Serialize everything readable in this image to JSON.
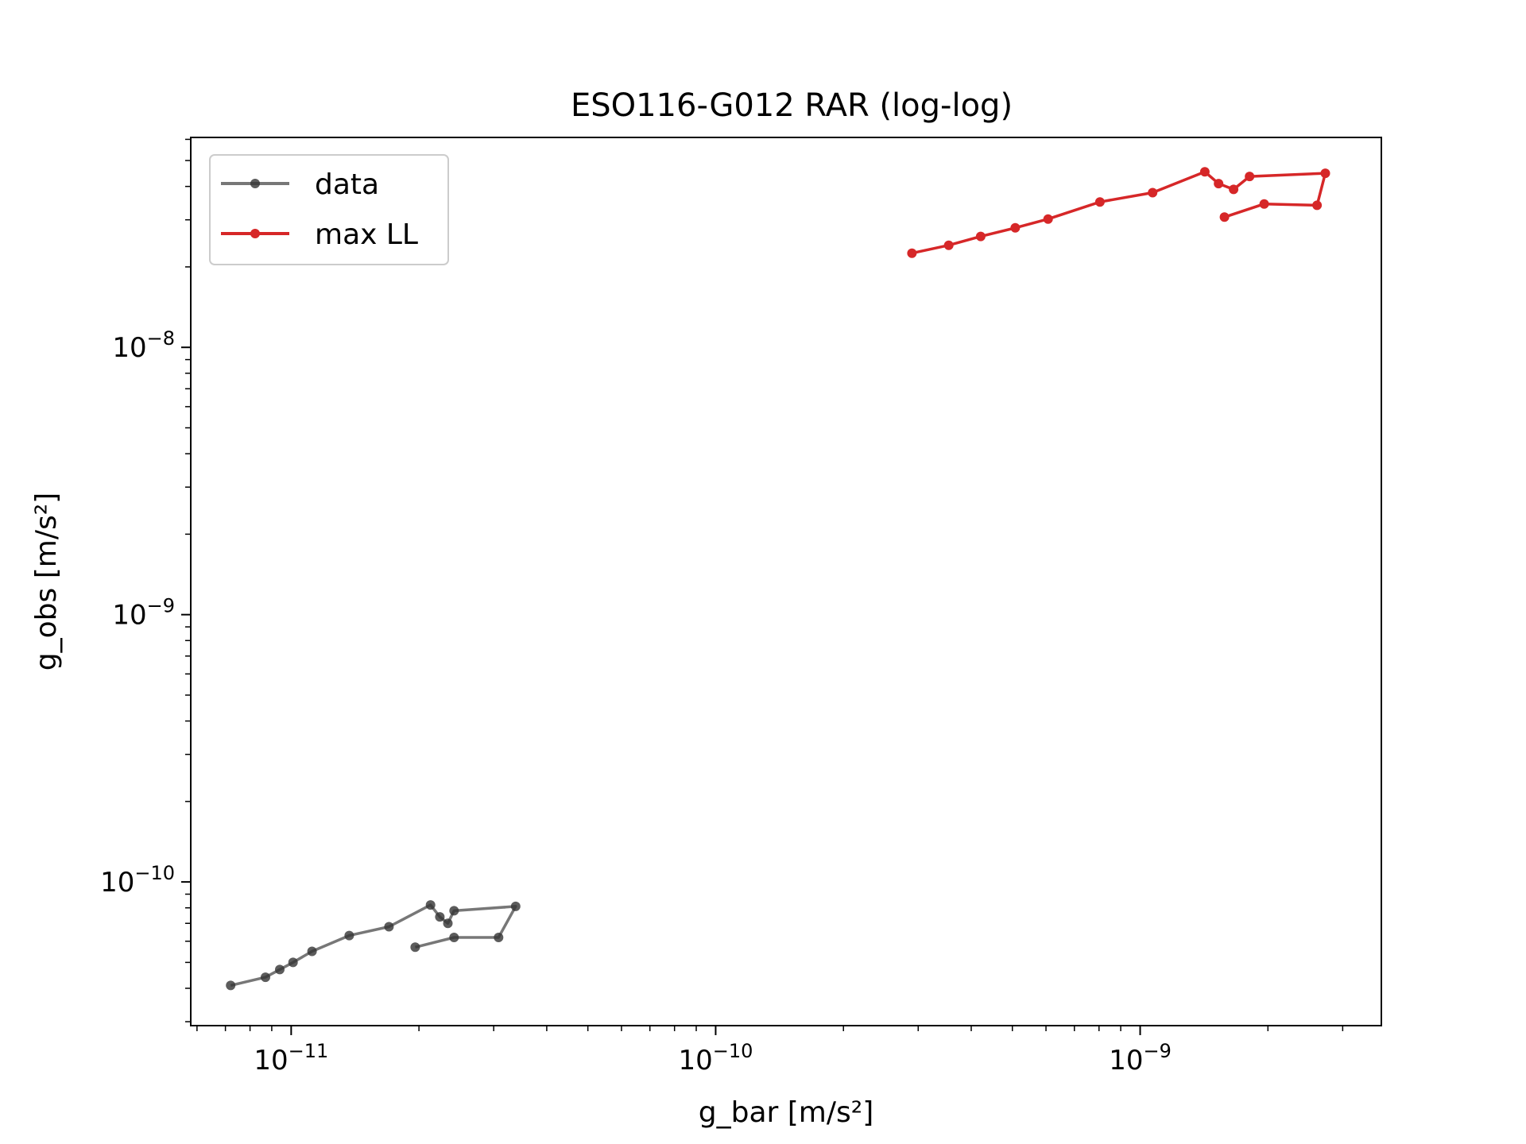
{
  "chart_data": {
    "type": "line",
    "title": "ESO116-G012 RAR (log-log)",
    "xlabel": "g_bar [m/s²]",
    "ylabel": "g_obs [m/s²]",
    "xscale": "log",
    "yscale": "log",
    "xlim": [
      5.8e-12,
      3.7e-09
    ],
    "ylim": [
      2.9e-11,
      6.1e-08
    ],
    "grid": false,
    "legend_position": "upper left",
    "x_ticks": [
      {
        "value": 1e-11,
        "base": "10",
        "exp": "−11"
      },
      {
        "value": 1e-10,
        "base": "10",
        "exp": "−10"
      },
      {
        "value": 1e-09,
        "base": "10",
        "exp": "−9"
      }
    ],
    "y_ticks": [
      {
        "value": 1e-10,
        "base": "10",
        "exp": "−10"
      },
      {
        "value": 1e-09,
        "base": "10",
        "exp": "−9"
      },
      {
        "value": 1e-08,
        "base": "10",
        "exp": "−8"
      }
    ],
    "series": [
      {
        "name": "data",
        "color": "#555555",
        "points": [
          [
            7.2e-12,
            4.1e-11
          ],
          [
            8.7e-12,
            4.4e-11
          ],
          [
            9.4e-12,
            4.7e-11
          ],
          [
            1.01e-11,
            5e-11
          ],
          [
            1.12e-11,
            5.5e-11
          ],
          [
            1.37e-11,
            6.3e-11
          ],
          [
            1.7e-11,
            6.8e-11
          ],
          [
            2.13e-11,
            8.2e-11
          ],
          [
            2.24e-11,
            7.4e-11
          ],
          [
            2.34e-11,
            7e-11
          ],
          [
            2.42e-11,
            7.8e-11
          ],
          [
            3.38e-11,
            8.1e-11
          ],
          [
            3.08e-11,
            6.2e-11
          ],
          [
            2.42e-11,
            6.2e-11
          ],
          [
            1.96e-11,
            5.7e-11
          ]
        ]
      },
      {
        "name": "max LL",
        "color": "#d62728",
        "points": [
          [
            2.9e-10,
            2.25e-08
          ],
          [
            3.54e-10,
            2.41e-08
          ],
          [
            4.21e-10,
            2.6e-08
          ],
          [
            5.08e-10,
            2.8e-08
          ],
          [
            6.07e-10,
            3.02e-08
          ],
          [
            8.04e-10,
            3.5e-08
          ],
          [
            1.07e-09,
            3.79e-08
          ],
          [
            1.42e-09,
            4.54e-08
          ],
          [
            1.53e-09,
            4.1e-08
          ],
          [
            1.66e-09,
            3.9e-08
          ],
          [
            1.81e-09,
            4.36e-08
          ],
          [
            2.73e-09,
            4.48e-08
          ],
          [
            2.61e-09,
            3.4e-08
          ],
          [
            1.96e-09,
            3.44e-08
          ],
          [
            1.58e-09,
            3.07e-08
          ]
        ]
      }
    ]
  }
}
